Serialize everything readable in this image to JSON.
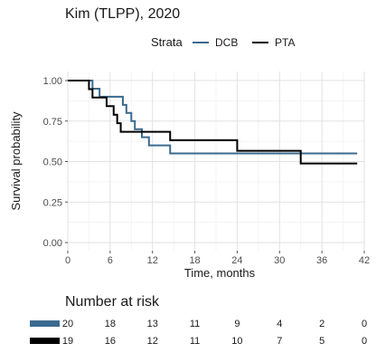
{
  "title": "Kim (TLPP), 2020",
  "legend": {
    "title": "Strata",
    "placement": "top",
    "items": [
      {
        "label": "DCB",
        "color": "#3a6a8f"
      },
      {
        "label": "PTA",
        "color": "#000000"
      }
    ]
  },
  "chart_data": {
    "type": "line",
    "subtype": "kaplan-meier step",
    "title": "Kim (TLPP), 2020",
    "xlabel": "Time, months",
    "ylabel": "Survival probability",
    "xlim": [
      0,
      42
    ],
    "ylim": [
      0,
      1
    ],
    "xticks": [
      0,
      6,
      12,
      18,
      24,
      30,
      36,
      42
    ],
    "yticks": [
      0,
      0.25,
      0.5,
      0.75,
      1
    ],
    "ytick_labels": [
      "0.00",
      "0.25",
      "0.50",
      "0.75",
      "1.00"
    ],
    "grid": true,
    "series": [
      {
        "name": "DCB",
        "color": "#3a6a8f",
        "steps": [
          [
            0,
            1.0
          ],
          [
            3.5,
            0.95
          ],
          [
            4.5,
            0.9
          ],
          [
            7.8,
            0.85
          ],
          [
            8.3,
            0.8
          ],
          [
            9.0,
            0.75
          ],
          [
            9.5,
            0.7
          ],
          [
            10.5,
            0.65
          ],
          [
            11.5,
            0.6
          ],
          [
            14.5,
            0.55
          ],
          [
            41,
            0.55
          ]
        ]
      },
      {
        "name": "PTA",
        "color": "#000000",
        "steps": [
          [
            0,
            1.0
          ],
          [
            3.0,
            0.947
          ],
          [
            3.5,
            0.895
          ],
          [
            5.5,
            0.842
          ],
          [
            6.5,
            0.789
          ],
          [
            7.0,
            0.737
          ],
          [
            7.5,
            0.684
          ],
          [
            14.5,
            0.632
          ],
          [
            24.0,
            0.566
          ],
          [
            33.0,
            0.488
          ],
          [
            41,
            0.488
          ]
        ]
      }
    ]
  },
  "risk_table": {
    "title": "Number at risk",
    "times": [
      0,
      6,
      12,
      18,
      24,
      30,
      36,
      42
    ],
    "rows": [
      {
        "name": "DCB",
        "color": "#3a6a8f",
        "values": [
          "20",
          "18",
          "13",
          "11",
          "9",
          "4",
          "2",
          "0"
        ]
      },
      {
        "name": "PTA",
        "color": "#000000",
        "values": [
          "19",
          "16",
          "12",
          "11",
          "10",
          "7",
          "5",
          "0"
        ]
      }
    ]
  }
}
